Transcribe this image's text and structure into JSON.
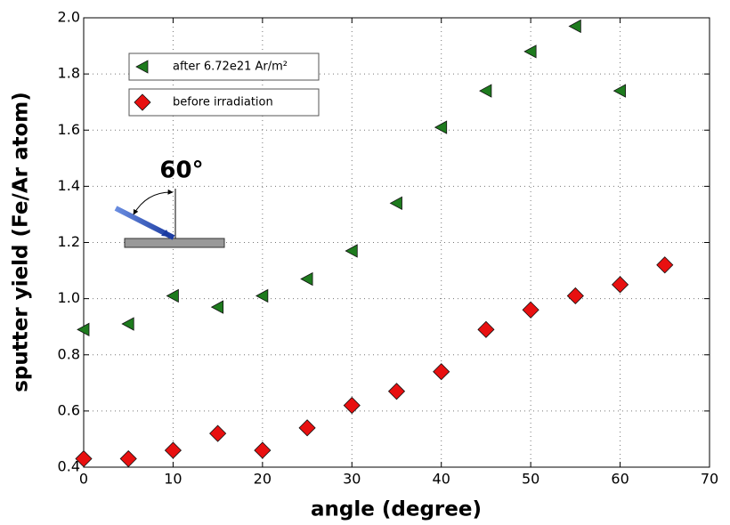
{
  "chart_data": {
    "type": "scatter",
    "xlabel": "angle  (degree)",
    "ylabel": "sputter yield (Fe/Ar atom)",
    "annotation": "60°",
    "xlim": [
      0,
      70
    ],
    "xticks": [
      0,
      10,
      20,
      30,
      40,
      50,
      60,
      70
    ],
    "ylim": [
      0.4,
      2.0
    ],
    "yticks": [
      0.4,
      0.6,
      0.8,
      {
        "value": 1.0,
        "label": "1.0"
      },
      1.2,
      1.4,
      1.6,
      1.8,
      {
        "value": 2.0,
        "label": "2.0"
      }
    ],
    "grid": true,
    "legend": "upper left",
    "series": [
      {
        "name": "after 6.72e21 Ar/m²",
        "color": "#1e7b1e",
        "marker": "triangle-left",
        "x": [
          0,
          5,
          10,
          15,
          20,
          25,
          30,
          35,
          40,
          45,
          50,
          55,
          60
        ],
        "values": [
          0.89,
          0.91,
          1.01,
          0.97,
          1.01,
          1.07,
          1.17,
          1.34,
          1.61,
          1.74,
          1.88,
          1.97,
          1.74
        ]
      },
      {
        "name": "before irradiation",
        "color": "#e81010",
        "marker": "diamond",
        "x": [
          0,
          5,
          10,
          15,
          20,
          25,
          30,
          35,
          40,
          45,
          50,
          55,
          60,
          65
        ],
        "values": [
          0.43,
          0.43,
          0.46,
          0.52,
          0.46,
          0.54,
          0.62,
          0.67,
          0.74,
          0.89,
          0.96,
          1.01,
          1.05,
          1.12
        ]
      }
    ]
  }
}
